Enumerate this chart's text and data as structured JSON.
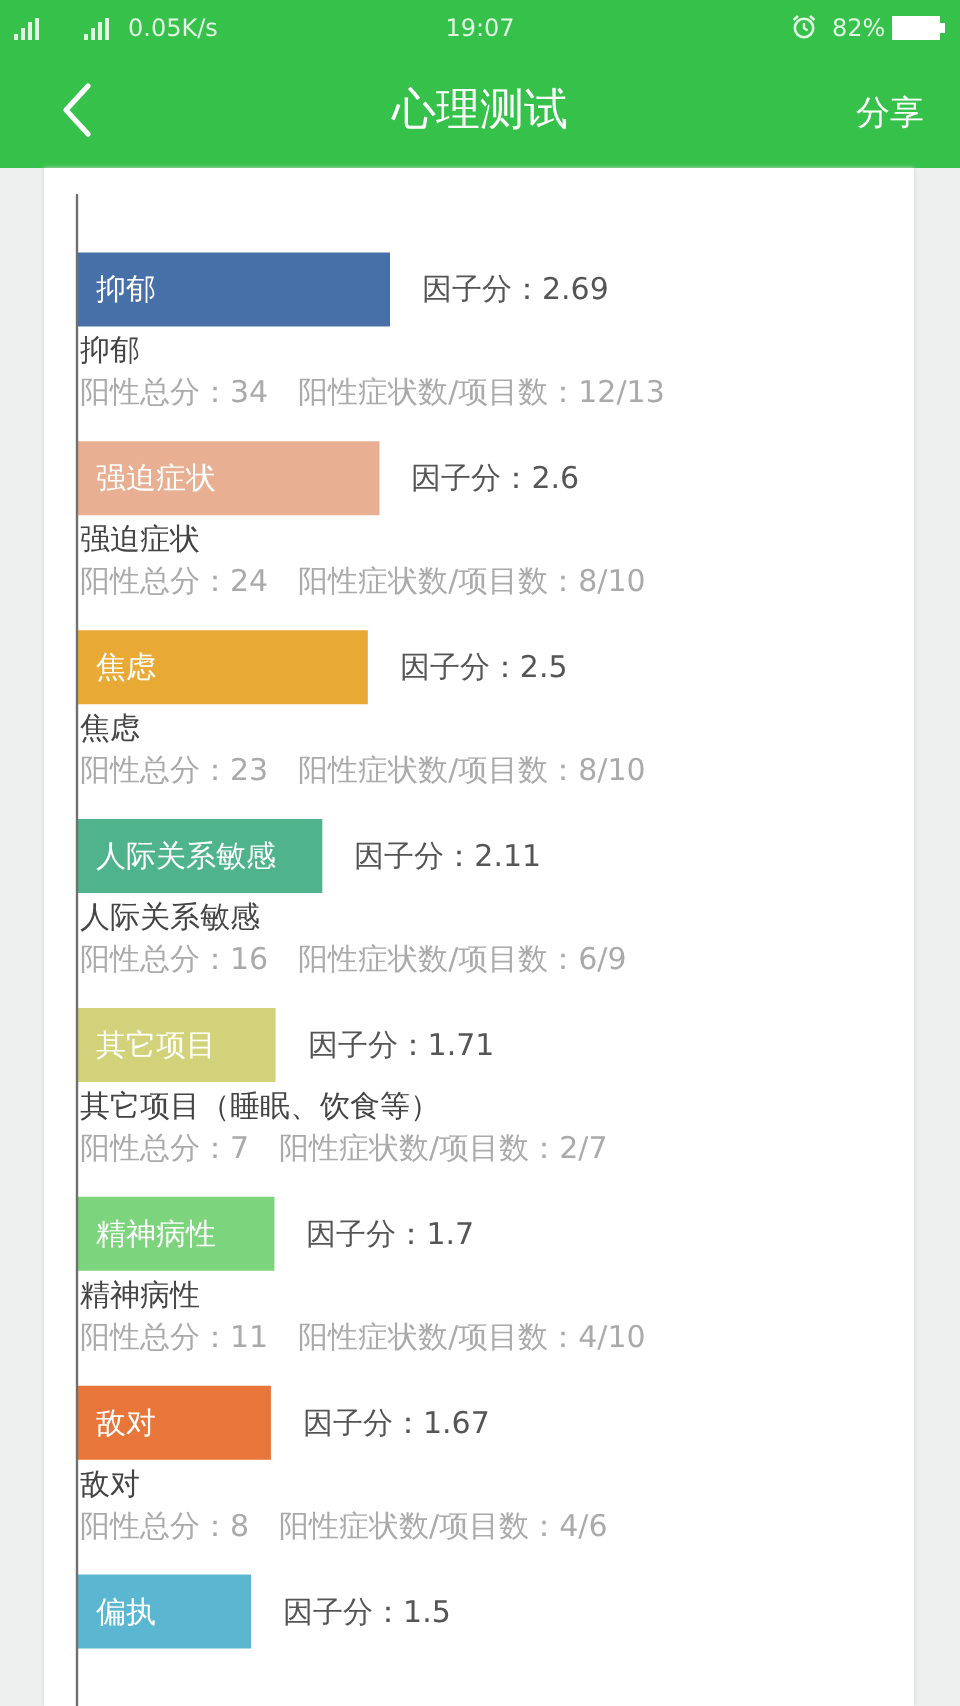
{
  "chart_data": {
    "type": "bar",
    "orientation": "horizontal",
    "title": "心理测试",
    "categories": [
      "抑郁",
      "强迫症状",
      "焦虑",
      "人际关系敏感",
      "其它项目",
      "精神病性",
      "敌对",
      "偏执"
    ],
    "values": [
      2.69,
      2.6,
      2.5,
      2.11,
      1.71,
      1.7,
      1.67,
      1.5
    ],
    "colors": [
      "#4870a8",
      "#e8af92",
      "#e9a935",
      "#4fb48b",
      "#d2d27a",
      "#7cd57c",
      "#e8763a",
      "#5bb6d2"
    ],
    "value_labels": [
      "因子分：2.69",
      "因子分：2.6",
      "因子分：2.5",
      "因子分：2.11",
      "因子分：1.71",
      "因子分：1.7",
      "因子分：1.67",
      "因子分：1.5"
    ],
    "tick_labels": "y",
    "annotations": [
      "0.05K/s",
      "19:07",
      "82%",
      "分享",
      "抑郁",
      "阳性总分：34　阳性症状数/项目数：12/13",
      "强迫症状",
      "阳性总分：24　阳性症状数/项目数：8/10",
      "焦虑",
      "阳性总分：23　阳性症状数/项目数：8/10",
      "人际关系敏感",
      "阳性总分：16　阳性症状数/项目数：6/9",
      "其它项目（睡眠、饮食等）",
      "阳性总分：7　阳性症状数/项目数：2/7",
      "精神病性",
      "阳性总分：11　阳性症状数/项目数：4/10",
      "敌对",
      "阳性总分：8　阳性症状数/项目数：4/6"
    ]
  }
}
